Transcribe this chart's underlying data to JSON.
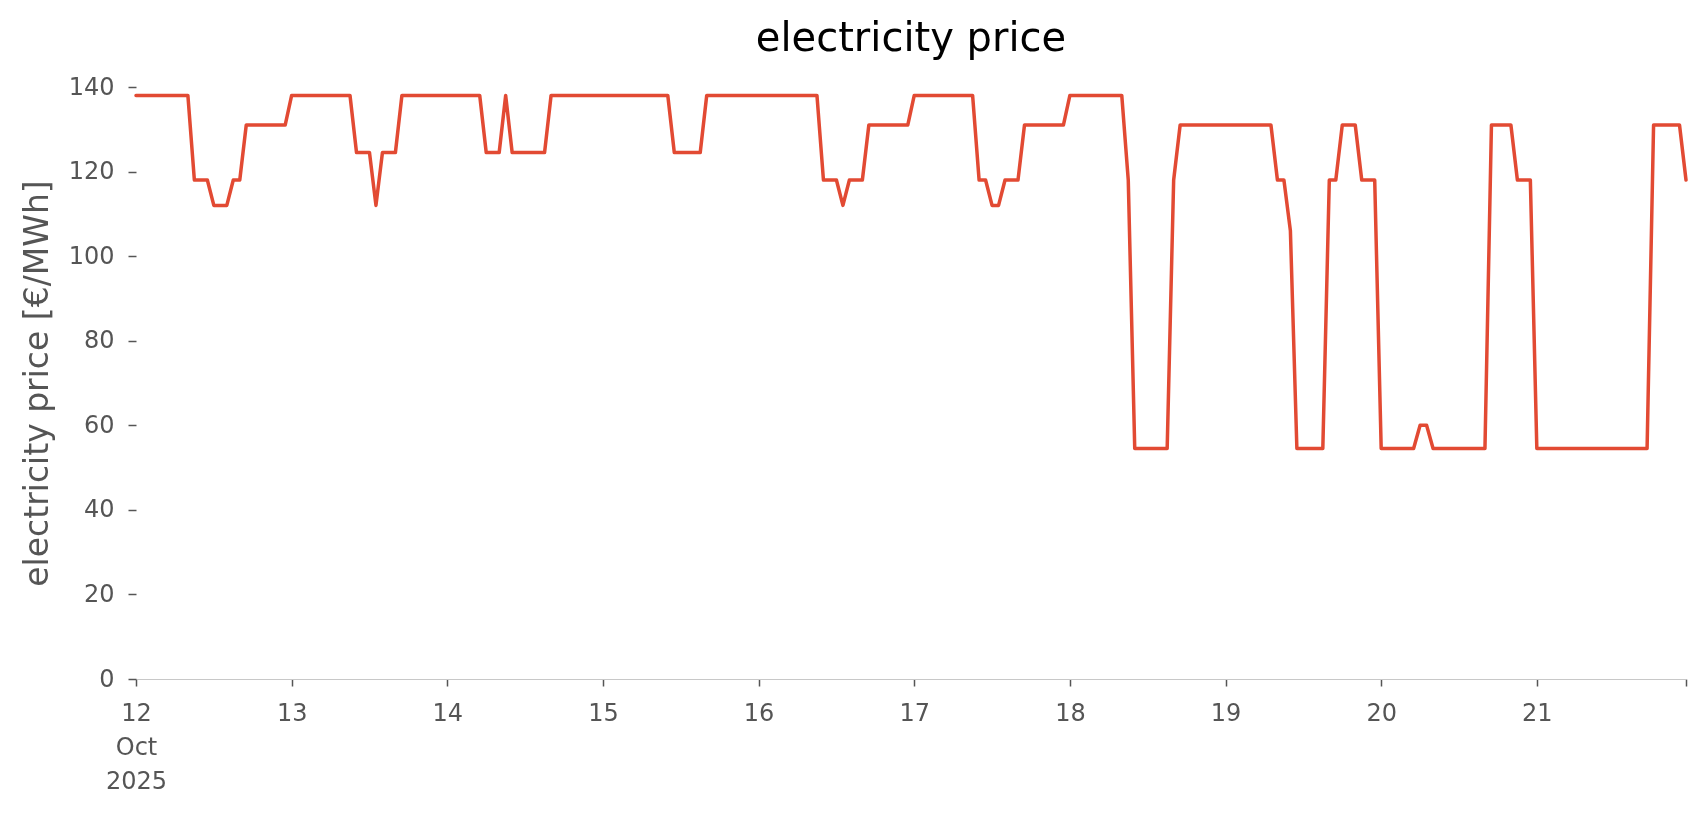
{
  "chart_data": {
    "type": "line",
    "title": "electricity price",
    "ylabel": "electricity price [€/MWh]",
    "x": [
      "2025-10-12T00:00",
      "2025-10-12T08:00",
      "2025-10-12T09:00",
      "2025-10-12T11:00",
      "2025-10-12T12:00",
      "2025-10-12T14:00",
      "2025-10-12T15:00",
      "2025-10-12T16:00",
      "2025-10-12T17:00",
      "2025-10-12T23:00",
      "2025-10-13T00:00",
      "2025-10-13T09:00",
      "2025-10-13T10:00",
      "2025-10-13T12:00",
      "2025-10-13T13:00",
      "2025-10-13T14:00",
      "2025-10-13T16:00",
      "2025-10-13T17:00",
      "2025-10-14T05:00",
      "2025-10-14T06:00",
      "2025-10-14T08:00",
      "2025-10-14T09:00",
      "2025-10-14T10:00",
      "2025-10-14T15:00",
      "2025-10-14T16:00",
      "2025-10-15T10:00",
      "2025-10-15T11:00",
      "2025-10-15T15:00",
      "2025-10-15T16:00",
      "2025-10-16T09:00",
      "2025-10-16T10:00",
      "2025-10-16T12:00",
      "2025-10-16T13:00",
      "2025-10-16T14:00",
      "2025-10-16T16:00",
      "2025-10-16T17:00",
      "2025-10-16T23:00",
      "2025-10-17T00:00",
      "2025-10-17T09:00",
      "2025-10-17T10:00",
      "2025-10-17T11:00",
      "2025-10-17T12:00",
      "2025-10-17T13:00",
      "2025-10-17T14:00",
      "2025-10-17T16:00",
      "2025-10-17T17:00",
      "2025-10-17T23:00",
      "2025-10-18T00:00",
      "2025-10-18T08:00",
      "2025-10-18T09:00",
      "2025-10-18T10:00",
      "2025-10-18T15:00",
      "2025-10-18T16:00",
      "2025-10-18T17:00",
      "2025-10-19T07:00",
      "2025-10-19T08:00",
      "2025-10-19T09:00",
      "2025-10-19T10:00",
      "2025-10-19T11:00",
      "2025-10-19T15:00",
      "2025-10-19T16:00",
      "2025-10-19T17:00",
      "2025-10-19T18:00",
      "2025-10-19T20:00",
      "2025-10-19T21:00",
      "2025-10-19T23:00",
      "2025-10-20T00:00",
      "2025-10-20T05:00",
      "2025-10-20T06:00",
      "2025-10-20T07:00",
      "2025-10-20T08:00",
      "2025-10-20T16:00",
      "2025-10-20T17:00",
      "2025-10-20T20:00",
      "2025-10-20T21:00",
      "2025-10-20T23:00",
      "2025-10-21T00:00",
      "2025-10-21T17:00",
      "2025-10-21T18:00",
      "2025-10-21T22:00",
      "2025-10-21T23:00"
    ],
    "series": [
      {
        "color": "#e24a33",
        "values": [
          138,
          138,
          118,
          118,
          112,
          112,
          118,
          118,
          131,
          131,
          138,
          138,
          124.5,
          124.5,
          112,
          124.5,
          124.5,
          138,
          138,
          124.5,
          124.5,
          138,
          124.5,
          124.5,
          138,
          138,
          124.5,
          124.5,
          138,
          138,
          118,
          118,
          112,
          118,
          118,
          131,
          131,
          138,
          138,
          118,
          118,
          112,
          112,
          118,
          118,
          131,
          131,
          138,
          138,
          118,
          54.5,
          54.5,
          118,
          131,
          131,
          118,
          118,
          106,
          54.5,
          54.5,
          118,
          118,
          131,
          131,
          118,
          118,
          54.5,
          54.5,
          60,
          60,
          54.5,
          54.5,
          131,
          131,
          118,
          118,
          54.5,
          54.5,
          131,
          131,
          118
        ]
      }
    ],
    "xlim": [
      "2025-10-12T00:00",
      "2025-10-21T23:00"
    ],
    "xticks": [
      {
        "value": "2025-10-12",
        "label": "12\nOct\n2025"
      },
      {
        "value": "2025-10-13",
        "label": "13"
      },
      {
        "value": "2025-10-14",
        "label": "14"
      },
      {
        "value": "2025-10-15",
        "label": "15"
      },
      {
        "value": "2025-10-16",
        "label": "16"
      },
      {
        "value": "2025-10-17",
        "label": "17"
      },
      {
        "value": "2025-10-18",
        "label": "18"
      },
      {
        "value": "2025-10-19",
        "label": "19"
      },
      {
        "value": "2025-10-20",
        "label": "20"
      },
      {
        "value": "2025-10-21",
        "label": "21"
      },
      {
        "value": "2025-10-21T23:00",
        "label": null
      }
    ],
    "ylim": [
      0,
      140
    ],
    "yticks": [
      0,
      20,
      40,
      60,
      80,
      100,
      120,
      140
    ],
    "line_style": "solid"
  }
}
